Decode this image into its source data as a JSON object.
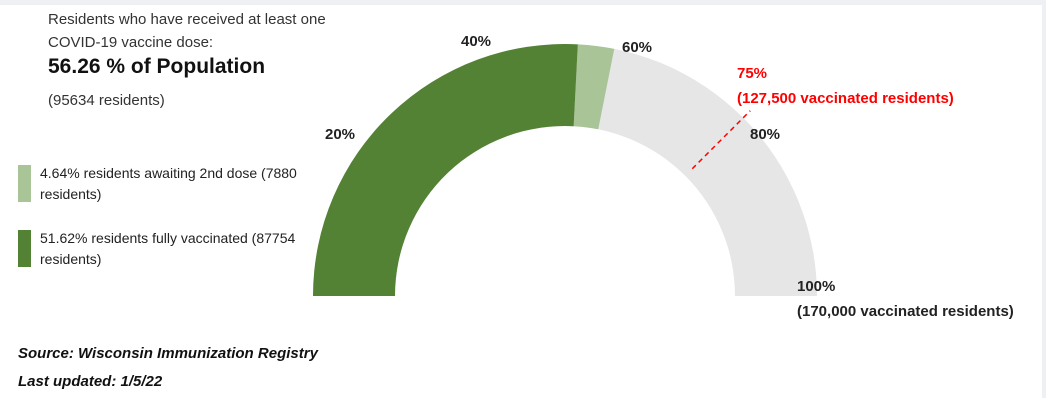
{
  "headline": "Residents who have received at least one COVID-19 vaccine dose:",
  "population_pct": "56.26 % of Population",
  "population_residents": "(95634 residents)",
  "legend": [
    {
      "text": "4.64% residents awaiting 2nd dose (7880 residents)",
      "color": "#a9c497"
    },
    {
      "text": "51.62% residents fully vaccinated (87754 residents)",
      "color": "#548235"
    }
  ],
  "gauge": {
    "tick_labels": [
      "20%",
      "40%",
      "60%",
      "80%"
    ],
    "label_100": "100%",
    "label_100_sub": "(170,000 vaccinated residents)",
    "target_label": "75%",
    "target_sub": "(127,500 vaccinated residents)"
  },
  "colors": {
    "fully": "#548235",
    "partial": "#a9c497",
    "remaining": "#e6e6e6",
    "target": "#ff0000"
  },
  "chart_data": {
    "type": "gauge",
    "unit": "percent of target (170,000 residents)",
    "range": [
      0,
      100
    ],
    "series": [
      {
        "name": "residents fully vaccinated",
        "value": 51.62
      },
      {
        "name": "residents awaiting 2nd dose",
        "value": 4.64
      }
    ],
    "total_at_least_one_dose": 56.26,
    "target": 75,
    "ticks": [
      20,
      40,
      60,
      80,
      100
    ]
  },
  "footer": {
    "source": "Source:  Wisconsin Immunization Registry",
    "updated": "Last updated: 1/5/22"
  }
}
